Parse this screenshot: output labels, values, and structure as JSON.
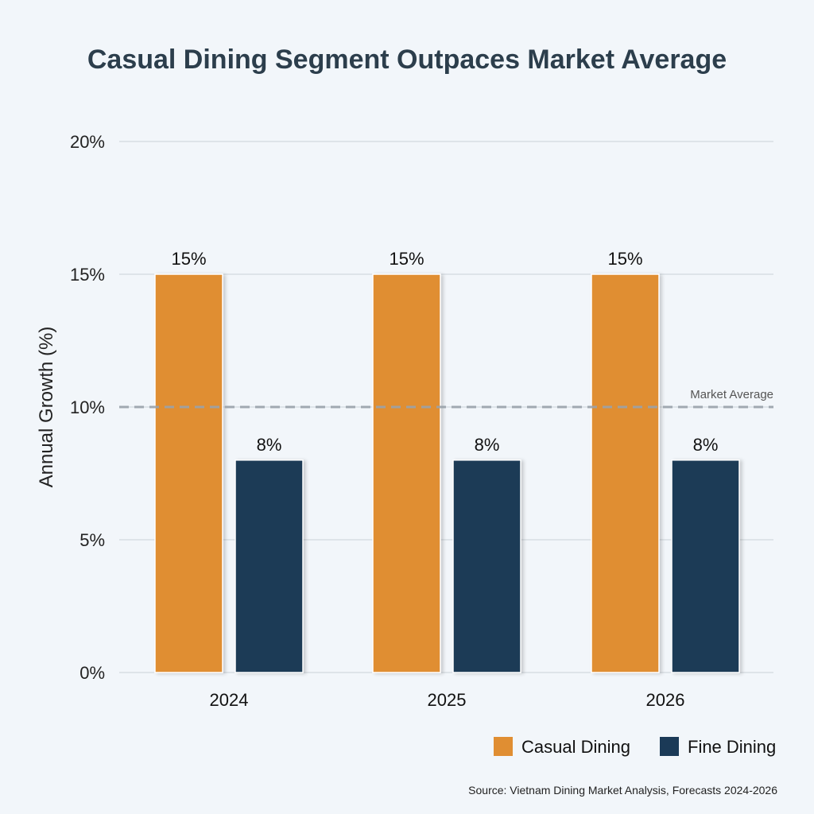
{
  "chart_data": {
    "type": "bar",
    "title": "Casual Dining Segment Outpaces Market Average",
    "xlabel": "",
    "ylabel": "Annual Growth (%)",
    "ylim": [
      0,
      20
    ],
    "yticks": [
      "0%",
      "5%",
      "10%",
      "15%",
      "20%"
    ],
    "ytick_values": [
      0,
      5,
      10,
      15,
      20
    ],
    "categories": [
      "2024",
      "2025",
      "2026"
    ],
    "series": [
      {
        "name": "Casual Dining",
        "values": [
          15,
          15,
          15
        ],
        "labels": [
          "15%",
          "15%",
          "15%"
        ],
        "color": "#e08e32"
      },
      {
        "name": "Fine Dining",
        "values": [
          8,
          8,
          8
        ],
        "labels": [
          "8%",
          "8%",
          "8%"
        ],
        "color": "#1b3a57"
      }
    ],
    "reference_line": {
      "label": "Market Average",
      "value": 10,
      "style": "dashed",
      "color": "#9aa3ab"
    },
    "grid": true,
    "legend": "bottom-right",
    "source": "Source: Vietnam Dining Market Analysis, Forecasts 2024-2026"
  }
}
